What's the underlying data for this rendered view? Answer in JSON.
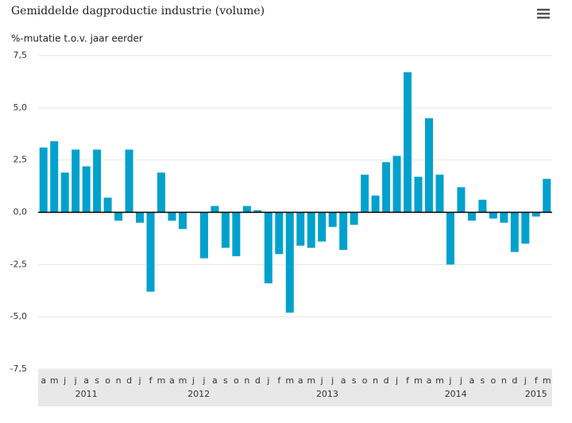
{
  "chart_data": {
    "type": "bar",
    "title": "Gemiddelde dagproductie industrie (volume)",
    "subtitle": "%-mutatie t.o.v. jaar eerder",
    "categories": [
      "a",
      "m",
      "j",
      "j",
      "a",
      "s",
      "o",
      "n",
      "d",
      "j",
      "f",
      "m",
      "a",
      "m",
      "j",
      "j",
      "a",
      "s",
      "o",
      "n",
      "d",
      "j",
      "f",
      "m",
      "a",
      "m",
      "j",
      "j",
      "a",
      "s",
      "o",
      "n",
      "d",
      "j",
      "f",
      "m",
      "a",
      "m",
      "j",
      "j",
      "a",
      "s",
      "o",
      "n",
      "d",
      "j",
      "f",
      "m"
    ],
    "year_labels": [
      "2011",
      "2012",
      "2013",
      "2014",
      "2015"
    ],
    "values": [
      3.1,
      3.4,
      1.9,
      3.0,
      2.2,
      3.0,
      0.7,
      -0.4,
      3.0,
      -0.5,
      -3.8,
      1.9,
      -0.4,
      -0.8,
      0.0,
      -2.2,
      0.3,
      -1.7,
      -2.1,
      0.3,
      0.1,
      -3.4,
      -2.0,
      -4.8,
      -1.6,
      -1.7,
      -1.4,
      -0.7,
      -1.8,
      -0.6,
      1.8,
      0.8,
      2.4,
      2.7,
      6.7,
      1.7,
      4.5,
      1.8,
      -2.5,
      1.2,
      -0.4,
      0.6,
      -0.3,
      -0.5,
      -1.9,
      -1.5,
      -0.2,
      1.6
    ],
    "color": "#00a1cd",
    "ylim": [
      -7.5,
      7.5
    ],
    "yticks": [
      {
        "value": -7.5,
        "label": "-7,5"
      },
      {
        "value": -5,
        "label": "-5,0"
      },
      {
        "value": -2.5,
        "label": "-2,5"
      },
      {
        "value": 0,
        "label": "0,0"
      },
      {
        "value": 2.5,
        "label": "2,5"
      },
      {
        "value": 5,
        "label": "5,0"
      },
      {
        "value": 7.5,
        "label": "7,5"
      }
    ],
    "grid": true
  }
}
